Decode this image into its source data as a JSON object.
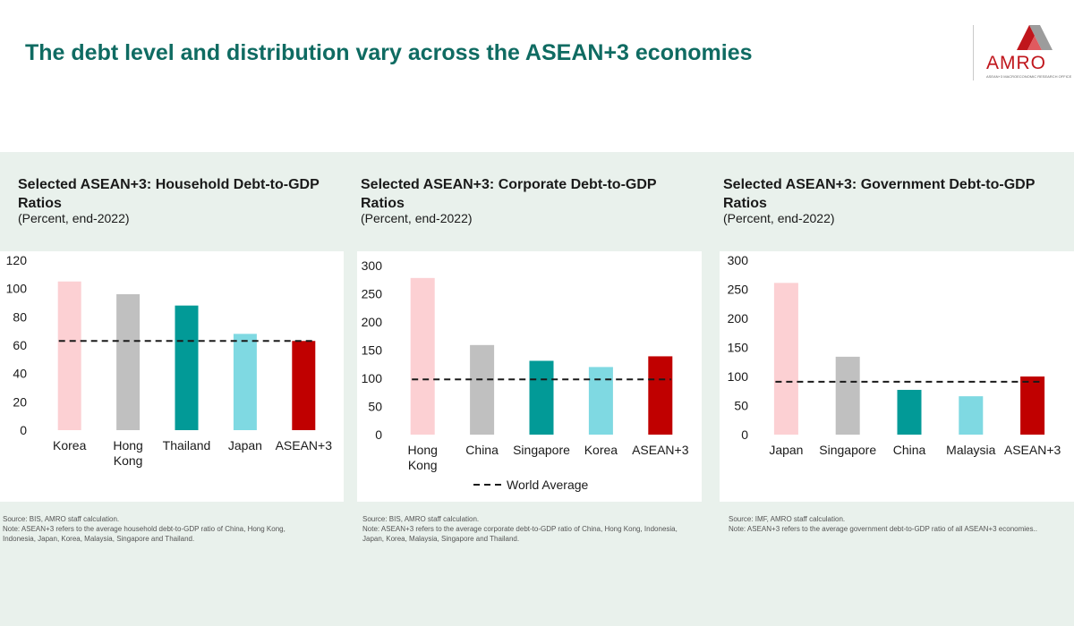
{
  "page_title": "The debt level and distribution vary across the ASEAN+3 economies",
  "logo": {
    "word": "AMRO",
    "tagline": "ASEAN+3 MACROECONOMIC RESEARCH OFFICE"
  },
  "colors": {
    "title_green": "#0f6b62",
    "band": "#e9f1ec",
    "pink": "#fcd0d3",
    "grey": "#c0c0c0",
    "teal": "#029a97",
    "light_teal": "#7fd9e2",
    "red": "#c00000"
  },
  "panels": [
    {
      "title": "Selected ASEAN+3: Household Debt-to-GDP Ratios",
      "subtitle": "(Percent, end-2022)",
      "source": "Source: BIS, AMRO staff calculation.",
      "note": "Note: ASEAN+3 refers to the average household debt-to-GDP ratio of China, Hong Kong, Indonesia, Japan, Korea, Malaysia, Singapore and Thailand."
    },
    {
      "title": "Selected ASEAN+3: Corporate Debt-to-GDP Ratios",
      "subtitle": "(Percent, end-2022)",
      "source": "Source: BIS, AMRO staff calculation.",
      "note": "Note: ASEAN+3 refers to the average corporate debt-to-GDP ratio of China, Hong Kong, Indonesia, Japan, Korea, Malaysia, Singapore and Thailand."
    },
    {
      "title": "Selected ASEAN+3: Government Debt-to-GDP Ratios",
      "subtitle": "(Percent, end-2022)",
      "source": "Source: IMF, AMRO staff calculation.",
      "note": "Note: ASEAN+3 refers to the average government debt-to-GDP ratio of all ASEAN+3 economies.."
    }
  ],
  "chart_data": [
    {
      "type": "bar",
      "title": "Selected ASEAN+3: Household Debt-to-GDP Ratios",
      "categories": [
        [
          "Korea"
        ],
        [
          "Hong",
          "Kong"
        ],
        [
          "Thailand"
        ],
        [
          "Japan"
        ],
        [
          "ASEAN+3"
        ]
      ],
      "values": [
        105,
        96,
        88,
        68,
        63
      ],
      "bar_colors": [
        "#fcd0d3",
        "#c0c0c0",
        "#029a97",
        "#7fd9e2",
        "#c00000"
      ],
      "reference_line": {
        "value": 63,
        "style": "dashed"
      },
      "ylim": [
        0,
        120
      ],
      "yticks": [
        0,
        20,
        40,
        60,
        80,
        100,
        120
      ],
      "legend": ""
    },
    {
      "type": "bar",
      "title": "Selected ASEAN+3: Corporate Debt-to-GDP Ratios",
      "categories": [
        [
          "Hong",
          "Kong"
        ],
        [
          "China"
        ],
        [
          "Singapore"
        ],
        [
          "Korea"
        ],
        [
          "ASEAN+3"
        ]
      ],
      "values": [
        278,
        159,
        131,
        120,
        139
      ],
      "bar_colors": [
        "#fcd0d3",
        "#c0c0c0",
        "#029a97",
        "#7fd9e2",
        "#c00000"
      ],
      "reference_line": {
        "value": 98,
        "style": "dashed"
      },
      "ylim": [
        0,
        300
      ],
      "yticks": [
        0,
        50,
        100,
        150,
        200,
        250,
        300
      ],
      "legend": "World Average"
    },
    {
      "type": "bar",
      "title": "Selected ASEAN+3: Government Debt-to-GDP Ratios",
      "categories": [
        [
          "Japan"
        ],
        [
          "Singapore"
        ],
        [
          "China"
        ],
        [
          "Malaysia"
        ],
        [
          "ASEAN+3"
        ]
      ],
      "values": [
        261,
        134,
        77,
        66,
        100
      ],
      "bar_colors": [
        "#fcd0d3",
        "#c0c0c0",
        "#029a97",
        "#7fd9e2",
        "#c00000"
      ],
      "reference_line": {
        "value": 91,
        "style": "dashed"
      },
      "ylim": [
        0,
        300
      ],
      "yticks": [
        0,
        50,
        100,
        150,
        200,
        250,
        300
      ],
      "legend": ""
    }
  ]
}
